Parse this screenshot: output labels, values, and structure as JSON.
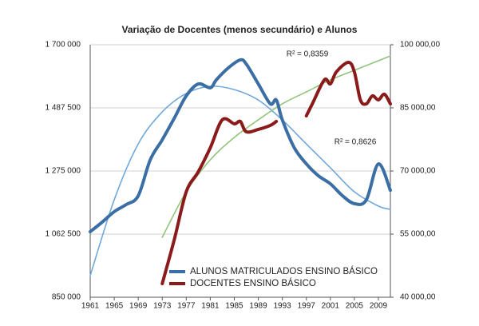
{
  "chart_data": {
    "type": "line",
    "title": "Variação de Docentes (menos secundário) e Alunos",
    "xlim": [
      1961,
      2011
    ],
    "xticks": [
      1961,
      1965,
      1969,
      1973,
      1977,
      1981,
      1985,
      1989,
      1993,
      1997,
      2001,
      2005,
      2009
    ],
    "ylim": [
      850000,
      1700000
    ],
    "yticks": [
      {
        "value": 850000,
        "label": "850 000"
      },
      {
        "value": 1062500,
        "label": "1 062 500"
      },
      {
        "value": 1275000,
        "label": "1 275 000"
      },
      {
        "value": 1487500,
        "label": "1 487 500"
      },
      {
        "value": 1700000,
        "label": "1 700 000"
      }
    ],
    "y2lim": [
      40000,
      100000
    ],
    "y2ticks": [
      {
        "value": 40000,
        "label": "40 000,00"
      },
      {
        "value": 55000,
        "label": "55 000,00"
      },
      {
        "value": 70000,
        "label": "70 000,00"
      },
      {
        "value": 85000,
        "label": "85 000,00"
      },
      {
        "value": 100000,
        "label": "100 000,00"
      }
    ],
    "grid": true,
    "legend": "bottom",
    "series": [
      {
        "name": "ALUNOS MATRICULADOS ENSINO BÁSICO",
        "color": "#3a6ea5",
        "x": [
          1961,
          1963,
          1965,
          1967,
          1969,
          1971,
          1973,
          1975,
          1977,
          1979,
          1981,
          1982,
          1984,
          1986,
          1987,
          1989,
          1991,
          1992,
          1993,
          1995,
          1997,
          1999,
          2001,
          2003,
          2005,
          2007,
          2009,
          2011
        ],
        "values": [
          1070600,
          1103000,
          1138000,
          1162000,
          1191600,
          1312700,
          1380000,
          1452600,
          1528000,
          1568000,
          1555000,
          1581700,
          1622000,
          1649000,
          1635000,
          1568000,
          1501000,
          1514000,
          1447000,
          1353000,
          1299000,
          1259000,
          1232000,
          1192000,
          1165000,
          1178000,
          1299000,
          1210000
        ]
      },
      {
        "name": "DOCENTES ENSINO BÁSICO",
        "color": "#8b1a1a",
        "axis": "y2",
        "x": [
          1973,
          1975,
          1977,
          1979,
          1981,
          1983,
          1985,
          1986,
          1987,
          1989,
          1991,
          1992,
          1995,
          1997,
          1998,
          2000,
          2001,
          2002,
          2004,
          2005,
          2006,
          2007,
          2008,
          2009,
          2010,
          2011
        ],
        "values": [
          43230,
          53670,
          65070,
          69810,
          75510,
          82160,
          81210,
          81780,
          79310,
          79880,
          80830,
          81780,
          null,
          83100,
          85960,
          91650,
          90700,
          93550,
          95830,
          93550,
          86900,
          85950,
          87850,
          86900,
          88240,
          85950
        ]
      }
    ],
    "trendlines": [
      {
        "color": "#6fa8dc",
        "x": [
          1961,
          1965,
          1969,
          1973,
          1977,
          1981,
          1985,
          1989,
          1993,
          1997,
          2001,
          2005,
          2009,
          2011
        ],
        "values": [
          922600,
          1178000,
          1366000,
          1474000,
          1536000,
          1560000,
          1549000,
          1514000,
          1447000,
          1366000,
          1286000,
          1205000,
          1157000,
          1146000
        ]
      },
      {
        "color": "#93c47d",
        "axis": "y2",
        "x": [
          1973,
          1977,
          1981,
          1985,
          1989,
          1993,
          1997,
          2001,
          2005,
          2009,
          2011
        ],
        "values": [
          54240,
          65070,
          72660,
          77980,
          82160,
          85960,
          88800,
          91650,
          93930,
          96210,
          97350
        ]
      }
    ],
    "annotations": [
      "R² = 0,8359",
      "R² = 0,8626"
    ]
  }
}
